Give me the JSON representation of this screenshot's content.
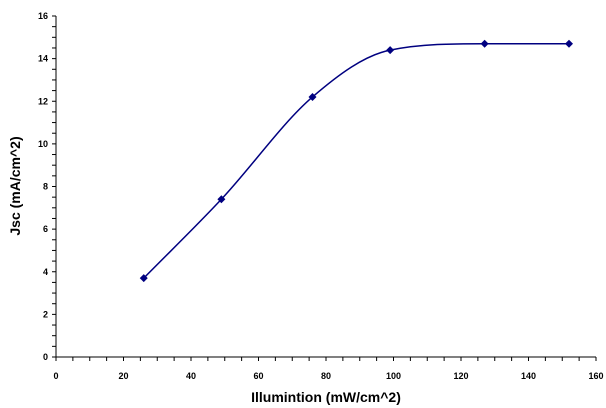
{
  "chart_data": {
    "type": "line",
    "xlabel": "Illumintion (mW/cm^2)",
    "ylabel": "Jsc (mA/cm^2)",
    "xlim": [
      0,
      160
    ],
    "ylim": [
      0,
      16
    ],
    "x_ticks": [
      "0",
      "20",
      "40",
      "60",
      "80",
      "100",
      "120",
      "140",
      "160"
    ],
    "y_ticks": [
      "0",
      "2",
      "4",
      "6",
      "8",
      "10",
      "12",
      "14",
      "16"
    ],
    "grid": false,
    "legend": "none",
    "series": [
      {
        "x": [
          26,
          49,
          76,
          99,
          127,
          152
        ],
        "y": [
          3.7,
          7.4,
          12.2,
          14.4,
          14.7,
          14.7
        ],
        "color": "#000080",
        "marker": "diamond",
        "smooth": true
      }
    ]
  }
}
